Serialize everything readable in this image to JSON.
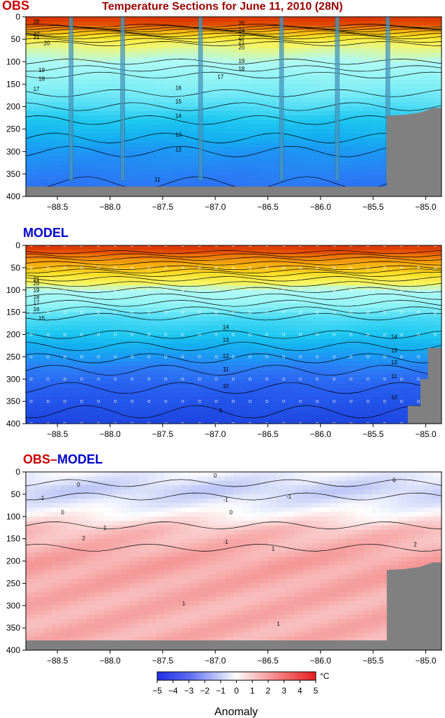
{
  "figure_title": "Temperature Sections for June 11, 2010 (28N)",
  "colors": {
    "obs_label": "#cc0000",
    "model_label": "#0000cc",
    "title": "#990000",
    "bathymetry": "#808080"
  },
  "colorbar": {
    "ticks": [
      "−5",
      "−4",
      "−3",
      "−2",
      "−1",
      "0",
      "1",
      "2",
      "3",
      "4",
      "5"
    ],
    "unit": "°C",
    "label": "Anomaly",
    "range": [
      -5,
      5
    ]
  },
  "chart_data": [
    {
      "type": "heatmap",
      "name": "OBS",
      "title": "OBS",
      "x_ticks": [
        "−88.5",
        "−88.0",
        "−87.5",
        "−87.0",
        "−86.5",
        "−86.0",
        "−85.5",
        "−85.0"
      ],
      "y_ticks": [
        "0",
        "50",
        "100",
        "150",
        "200",
        "250",
        "300",
        "350",
        "400"
      ],
      "xlim": [
        -88.8,
        -84.85
      ],
      "ylim": [
        400,
        0
      ],
      "x_tick_values": [
        -88.5,
        -88.0,
        -87.5,
        -87.0,
        -86.5,
        -86.0,
        -85.5,
        -85.0
      ],
      "y_tick_values": [
        0,
        50,
        100,
        150,
        200,
        250,
        300,
        350,
        400
      ],
      "contour_levels": [
        11,
        12,
        13,
        14,
        15,
        16,
        17,
        18,
        19,
        20,
        21,
        22,
        23,
        24,
        25,
        26,
        27,
        28
      ],
      "labeled_contours": [
        {
          "value": "28",
          "lon": -88.7,
          "depth": 10
        },
        {
          "value": "22",
          "lon": -88.7,
          "depth": 38
        },
        {
          "value": "21",
          "lon": -88.7,
          "depth": 45
        },
        {
          "value": "20",
          "lon": -88.6,
          "depth": 58
        },
        {
          "value": "19",
          "lon": -88.65,
          "depth": 118
        },
        {
          "value": "18",
          "lon": -88.65,
          "depth": 138
        },
        {
          "value": "17",
          "lon": -88.7,
          "depth": 160
        },
        {
          "value": "16",
          "lon": -87.35,
          "depth": 158
        },
        {
          "value": "15",
          "lon": -87.35,
          "depth": 188
        },
        {
          "value": "14",
          "lon": -87.35,
          "depth": 220
        },
        {
          "value": "13",
          "lon": -87.35,
          "depth": 262
        },
        {
          "value": "12",
          "lon": -87.35,
          "depth": 295
        },
        {
          "value": "11",
          "lon": -87.55,
          "depth": 362
        },
        {
          "value": "26",
          "lon": -86.75,
          "depth": 14
        },
        {
          "value": "24",
          "lon": -86.75,
          "depth": 30
        },
        {
          "value": "22",
          "lon": -86.75,
          "depth": 45
        },
        {
          "value": "21",
          "lon": -86.75,
          "depth": 55
        },
        {
          "value": "20",
          "lon": -86.75,
          "depth": 68
        },
        {
          "value": "19",
          "lon": -86.75,
          "depth": 98
        },
        {
          "value": "18",
          "lon": -86.75,
          "depth": 115
        },
        {
          "value": "17",
          "lon": -86.95,
          "depth": 133
        }
      ],
      "cast_longitudes": [
        -88.37,
        -87.88,
        -87.14,
        -86.37,
        -85.84,
        -85.36
      ],
      "profile": [
        {
          "depth": 0,
          "temp": 29
        },
        {
          "depth": 20,
          "temp": 28
        },
        {
          "depth": 30,
          "temp": 25
        },
        {
          "depth": 45,
          "temp": 22
        },
        {
          "depth": 60,
          "temp": 20
        },
        {
          "depth": 100,
          "temp": 19
        },
        {
          "depth": 130,
          "temp": 17
        },
        {
          "depth": 170,
          "temp": 16
        },
        {
          "depth": 200,
          "temp": 15
        },
        {
          "depth": 230,
          "temp": 14
        },
        {
          "depth": 270,
          "temp": 13
        },
        {
          "depth": 300,
          "temp": 12
        },
        {
          "depth": 370,
          "temp": 11
        },
        {
          "depth": 400,
          "temp": 10.5
        }
      ],
      "bathymetry": [
        {
          "lon": -88.8,
          "depth": 378
        },
        {
          "lon": -85.37,
          "depth": 378
        },
        {
          "lon": -85.37,
          "depth": 220
        },
        {
          "lon": -85.2,
          "depth": 218
        },
        {
          "lon": -85.05,
          "depth": 213
        },
        {
          "lon": -84.93,
          "depth": 203
        },
        {
          "lon": -84.85,
          "depth": 203
        }
      ]
    },
    {
      "type": "heatmap",
      "name": "MODEL",
      "title": "MODEL",
      "x_ticks": [
        "−88.5",
        "−88.0",
        "−87.5",
        "−87.0",
        "−86.5",
        "−86.0",
        "−85.5",
        "−85.0"
      ],
      "y_ticks": [
        "0",
        "50",
        "100",
        "150",
        "200",
        "250",
        "300",
        "350",
        "400"
      ],
      "xlim": [
        -88.8,
        -84.85
      ],
      "ylim": [
        400,
        0
      ],
      "x_tick_values": [
        -88.5,
        -88.0,
        -87.5,
        -87.0,
        -86.5,
        -86.0,
        -85.5,
        -85.0
      ],
      "y_tick_values": [
        0,
        50,
        100,
        150,
        200,
        250,
        300,
        350,
        400
      ],
      "contour_levels": [
        9,
        10,
        11,
        12,
        13,
        14,
        15,
        16,
        17,
        18,
        19,
        20,
        21,
        22,
        23,
        24,
        25,
        26,
        27,
        28
      ],
      "labeled_contours": [
        {
          "value": "21",
          "lon": -88.7,
          "depth": 75
        },
        {
          "value": "20",
          "lon": -88.7,
          "depth": 85
        },
        {
          "value": "19",
          "lon": -88.7,
          "depth": 100
        },
        {
          "value": "18",
          "lon": -88.7,
          "depth": 115
        },
        {
          "value": "17",
          "lon": -88.7,
          "depth": 128
        },
        {
          "value": "16",
          "lon": -88.7,
          "depth": 143
        },
        {
          "value": "15",
          "lon": -88.65,
          "depth": 163
        },
        {
          "value": "14",
          "lon": -86.9,
          "depth": 183
        },
        {
          "value": "13",
          "lon": -86.9,
          "depth": 212
        },
        {
          "value": "12",
          "lon": -86.9,
          "depth": 248
        },
        {
          "value": "11",
          "lon": -86.9,
          "depth": 278
        },
        {
          "value": "10",
          "lon": -86.9,
          "depth": 315
        },
        {
          "value": "9",
          "lon": -86.95,
          "depth": 370
        },
        {
          "value": "14",
          "lon": -85.3,
          "depth": 205
        },
        {
          "value": "13",
          "lon": -85.3,
          "depth": 235
        },
        {
          "value": "12",
          "lon": -85.3,
          "depth": 262
        },
        {
          "value": "11",
          "lon": -85.3,
          "depth": 293
        },
        {
          "value": "10",
          "lon": -85.3,
          "depth": 340
        }
      ],
      "profile": [
        {
          "depth": 0,
          "temp": 29
        },
        {
          "depth": 15,
          "temp": 28
        },
        {
          "depth": 30,
          "temp": 26
        },
        {
          "depth": 50,
          "temp": 24
        },
        {
          "depth": 65,
          "temp": 22
        },
        {
          "depth": 80,
          "temp": 20.5
        },
        {
          "depth": 100,
          "temp": 19
        },
        {
          "depth": 130,
          "temp": 17
        },
        {
          "depth": 160,
          "temp": 15
        },
        {
          "depth": 200,
          "temp": 14
        },
        {
          "depth": 240,
          "temp": 12.5
        },
        {
          "depth": 280,
          "temp": 11
        },
        {
          "depth": 320,
          "temp": 10
        },
        {
          "depth": 400,
          "temp": 8.5
        }
      ],
      "bathymetry": [
        {
          "lon": -85.17,
          "depth": 400
        },
        {
          "lon": -85.17,
          "depth": 360
        },
        {
          "lon": -85.05,
          "depth": 360
        },
        {
          "lon": -85.05,
          "depth": 300
        },
        {
          "lon": -84.98,
          "depth": 300
        },
        {
          "lon": -84.98,
          "depth": 230
        },
        {
          "lon": -84.85,
          "depth": 230
        },
        {
          "lon": -84.85,
          "depth": 400
        }
      ]
    },
    {
      "type": "heatmap",
      "name": "OBS-MODEL",
      "title": "OBS–MODEL",
      "title_parts": [
        "OBS",
        "–",
        "MODEL"
      ],
      "x_ticks": [
        "−88.5",
        "−88.0",
        "−87.5",
        "−87.0",
        "−86.5",
        "−86.0",
        "−85.5",
        "−85.0"
      ],
      "y_ticks": [
        "0",
        "50",
        "100",
        "150",
        "200",
        "250",
        "300",
        "350",
        "400"
      ],
      "xlim": [
        -88.8,
        -84.85
      ],
      "ylim": [
        400,
        0
      ],
      "x_tick_values": [
        -88.5,
        -88.0,
        -87.5,
        -87.0,
        -86.5,
        -86.0,
        -85.5,
        -85.0
      ],
      "y_tick_values": [
        0,
        50,
        100,
        150,
        200,
        250,
        300,
        350,
        400
      ],
      "contour_levels": [
        -1,
        0,
        1,
        2
      ],
      "labeled_contours": [
        {
          "value": "0",
          "lon": -87.0,
          "depth": 8
        },
        {
          "value": "0",
          "lon": -88.3,
          "depth": 28
        },
        {
          "value": "0",
          "lon": -85.3,
          "depth": 18
        },
        {
          "value": "-1",
          "lon": -88.65,
          "depth": 58
        },
        {
          "value": "-1",
          "lon": -86.9,
          "depth": 62
        },
        {
          "value": "-1",
          "lon": -86.3,
          "depth": 55
        },
        {
          "value": "0",
          "lon": -88.45,
          "depth": 90
        },
        {
          "value": "0",
          "lon": -86.85,
          "depth": 90
        },
        {
          "value": "1",
          "lon": -88.05,
          "depth": 125
        },
        {
          "value": "-1",
          "lon": -86.9,
          "depth": 157
        },
        {
          "value": "1",
          "lon": -86.45,
          "depth": 172
        },
        {
          "value": "2",
          "lon": -88.25,
          "depth": 148
        },
        {
          "value": "2",
          "lon": -85.1,
          "depth": 162
        },
        {
          "value": "1",
          "lon": -87.3,
          "depth": 295
        },
        {
          "value": "1",
          "lon": -86.4,
          "depth": 340
        }
      ],
      "anomaly_profile": [
        {
          "depth": 0,
          "value": -0.3
        },
        {
          "depth": 40,
          "value": -1.2
        },
        {
          "depth": 70,
          "value": -0.6
        },
        {
          "depth": 100,
          "value": 0.3
        },
        {
          "depth": 130,
          "value": 1.3
        },
        {
          "depth": 200,
          "value": 1.8
        },
        {
          "depth": 300,
          "value": 1.6
        },
        {
          "depth": 380,
          "value": 1.6
        }
      ],
      "bathymetry": [
        {
          "lon": -88.8,
          "depth": 378
        },
        {
          "lon": -85.37,
          "depth": 378
        },
        {
          "lon": -85.37,
          "depth": 220
        },
        {
          "lon": -85.2,
          "depth": 218
        },
        {
          "lon": -85.05,
          "depth": 213
        },
        {
          "lon": -84.93,
          "depth": 203
        },
        {
          "lon": -84.85,
          "depth": 203
        }
      ]
    }
  ]
}
